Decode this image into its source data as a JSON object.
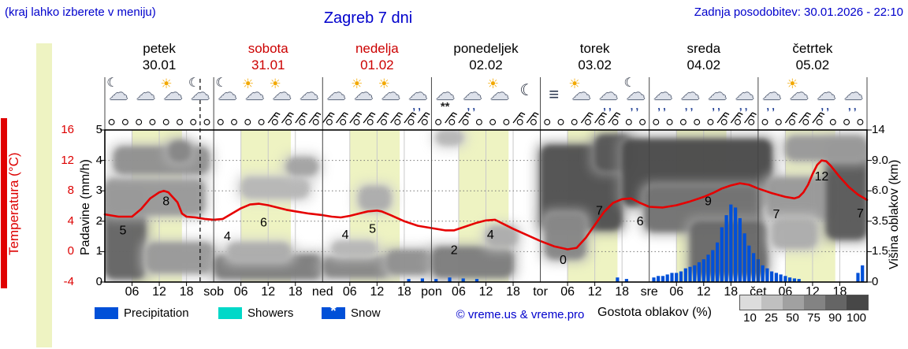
{
  "header": {
    "hint": "(kraj lahko izberete v meniju)",
    "title": "Zagreb 7 dni",
    "updated": "Zadnja posodobitev: 30.01.2026 - 22:10"
  },
  "axes": {
    "temp": {
      "label": "Temperatura (°C)",
      "ticks": [
        "16",
        "12",
        "8",
        "4",
        "0",
        "-4"
      ]
    },
    "precip": {
      "label": "Padavine (mm/h)",
      "ticks": [
        "5",
        "4",
        "3",
        "2",
        "1",
        "0"
      ]
    },
    "cloud": {
      "label": "Višina oblakov (km)",
      "ticks": [
        "14",
        "9.0",
        "6.0",
        "3.5",
        "1.5",
        "0"
      ]
    }
  },
  "days": [
    {
      "name": "petek",
      "date": "30.01",
      "color": "#000000"
    },
    {
      "name": "sobota",
      "date": "31.01",
      "color": "#cc0000"
    },
    {
      "name": "nedelja",
      "date": "01.02",
      "color": "#cc0000"
    },
    {
      "name": "ponedeljek",
      "date": "02.02",
      "color": "#000000"
    },
    {
      "name": "torek",
      "date": "03.02",
      "color": "#000000"
    },
    {
      "name": "sreda",
      "date": "04.02",
      "color": "#000000"
    },
    {
      "name": "četrtek",
      "date": "05.02",
      "color": "#000000"
    }
  ],
  "x_axis": {
    "hour_labels": [
      "06",
      "12",
      "18"
    ],
    "day_abbrevs": [
      "sob",
      "ned",
      "pon",
      "tor",
      "sre",
      "čet"
    ]
  },
  "icons": [
    "moon-cloud",
    "cloud",
    "sun-cloud",
    "moon-cloud",
    "moon-cloud",
    "sun-cloud",
    "sun-cloud",
    "cloud",
    "cloud",
    "sun-cloud",
    "sun-cloud",
    "cloud-rain",
    "cloud-snow",
    "cloud-rain",
    "sun-cloud",
    "moon",
    "fog",
    "sun-cloud",
    "cloud-rain",
    "moon-cloud-rain",
    "cloud-rain",
    "cloud-rain",
    "cloud-rain",
    "cloud-rain",
    "cloud-rain",
    "sun-cloud",
    "cloud-rain",
    "cloud-rain"
  ],
  "legend": {
    "precipitation": "Precipitation",
    "showers": "Showers",
    "snow": "Snow",
    "copyright": "© vreme.us & vreme.pro",
    "cloud_density": {
      "label": "Gostota oblakov (%)",
      "ticks": [
        "10",
        "25",
        "50",
        "75",
        "90",
        "100"
      ],
      "colors": [
        "#dcdcdc",
        "#c0c0c0",
        "#a1a1a1",
        "#838383",
        "#656565",
        "#474747"
      ]
    }
  },
  "colors": {
    "day_band": "#eef3c2",
    "precip_bar": "#0050d8",
    "showers": "#00d8c8",
    "temp_line": "#e60000",
    "accent_blue": "#0000cc",
    "weekend_red": "#cc0000"
  },
  "chart_data": {
    "type": "meteogram",
    "hours_total": 168,
    "now_hour": 21,
    "time_marker_every_h": 3,
    "daylight_hours": [
      6,
      17
    ],
    "temp_c": [
      [
        0,
        4.9
      ],
      [
        3,
        4.6
      ],
      [
        6,
        4.6
      ],
      [
        8,
        5.6
      ],
      [
        10,
        7.0
      ],
      [
        12,
        7.8
      ],
      [
        13,
        8.0
      ],
      [
        14,
        7.8
      ],
      [
        16,
        6.5
      ],
      [
        17,
        5.0
      ],
      [
        18,
        4.6
      ],
      [
        20,
        4.5
      ],
      [
        22,
        4.3
      ],
      [
        24,
        4.2
      ],
      [
        26,
        4.3
      ],
      [
        28,
        5.0
      ],
      [
        30,
        5.7
      ],
      [
        32,
        6.2
      ],
      [
        34,
        6.3
      ],
      [
        36,
        6.1
      ],
      [
        38,
        5.8
      ],
      [
        40,
        5.5
      ],
      [
        42,
        5.3
      ],
      [
        45,
        5.0
      ],
      [
        48,
        4.8
      ],
      [
        50,
        4.6
      ],
      [
        52,
        4.5
      ],
      [
        54,
        4.7
      ],
      [
        56,
        5.0
      ],
      [
        58,
        5.3
      ],
      [
        60,
        5.4
      ],
      [
        61,
        5.3
      ],
      [
        63,
        4.8
      ],
      [
        66,
        4.0
      ],
      [
        69,
        3.4
      ],
      [
        72,
        3.1
      ],
      [
        75,
        2.8
      ],
      [
        77,
        2.8
      ],
      [
        79,
        3.2
      ],
      [
        82,
        3.8
      ],
      [
        84,
        4.1
      ],
      [
        86,
        4.2
      ],
      [
        88,
        3.6
      ],
      [
        90,
        3.0
      ],
      [
        93,
        2.2
      ],
      [
        96,
        1.4
      ],
      [
        99,
        0.7
      ],
      [
        102,
        0.3
      ],
      [
        104,
        0.5
      ],
      [
        106,
        1.8
      ],
      [
        108,
        3.5
      ],
      [
        110,
        5.2
      ],
      [
        112,
        6.4
      ],
      [
        114,
        6.9
      ],
      [
        116,
        7.0
      ],
      [
        118,
        6.4
      ],
      [
        120,
        5.9
      ],
      [
        123,
        5.8
      ],
      [
        126,
        6.1
      ],
      [
        129,
        6.6
      ],
      [
        132,
        7.2
      ],
      [
        134,
        7.7
      ],
      [
        136,
        8.3
      ],
      [
        138,
        8.7
      ],
      [
        140,
        9.0
      ],
      [
        142,
        8.8
      ],
      [
        144,
        8.3
      ],
      [
        147,
        7.7
      ],
      [
        150,
        7.2
      ],
      [
        152,
        7.0
      ],
      [
        153,
        7.2
      ],
      [
        154,
        7.8
      ],
      [
        155,
        8.8
      ],
      [
        156,
        10.2
      ],
      [
        157,
        11.4
      ],
      [
        158,
        12.0
      ],
      [
        159,
        11.9
      ],
      [
        160,
        11.3
      ],
      [
        162,
        9.8
      ],
      [
        164,
        8.5
      ],
      [
        166,
        7.5
      ],
      [
        168,
        6.8
      ]
    ],
    "temp_labels": [
      [
        4,
        "5",
        2.8
      ],
      [
        13.5,
        "8",
        6.6
      ],
      [
        27,
        "4",
        2.0
      ],
      [
        35,
        "6",
        3.8
      ],
      [
        53,
        "4",
        2.2
      ],
      [
        59,
        "5",
        3.0
      ],
      [
        77,
        "2",
        0.2
      ],
      [
        85,
        "4",
        2.2
      ],
      [
        101,
        "0",
        -1.1
      ],
      [
        109,
        "7",
        5.4
      ],
      [
        118,
        "6",
        4.0
      ],
      [
        133,
        "9",
        6.6
      ],
      [
        148,
        "7",
        4.9
      ],
      [
        158,
        "12",
        9.9
      ],
      [
        166.5,
        "7",
        5.0
      ]
    ],
    "precip_mm": [
      [
        67,
        0.1
      ],
      [
        70,
        0.12
      ],
      [
        73,
        0.1
      ],
      [
        76,
        0.15
      ],
      [
        79,
        0.12
      ],
      [
        82,
        0.1
      ],
      [
        113,
        0.15
      ],
      [
        115,
        0.1
      ],
      [
        121,
        0.15
      ],
      [
        122,
        0.2
      ],
      [
        123,
        0.2
      ],
      [
        124,
        0.25
      ],
      [
        125,
        0.3
      ],
      [
        126,
        0.3
      ],
      [
        127,
        0.35
      ],
      [
        128,
        0.45
      ],
      [
        129,
        0.5
      ],
      [
        130,
        0.55
      ],
      [
        131,
        0.65
      ],
      [
        132,
        0.75
      ],
      [
        133,
        0.9
      ],
      [
        134,
        1.05
      ],
      [
        135,
        1.3
      ],
      [
        136,
        1.8
      ],
      [
        137,
        2.2
      ],
      [
        138,
        2.55
      ],
      [
        139,
        2.45
      ],
      [
        140,
        2.1
      ],
      [
        141,
        1.6
      ],
      [
        142,
        1.2
      ],
      [
        143,
        0.95
      ],
      [
        144,
        0.75
      ],
      [
        145,
        0.55
      ],
      [
        146,
        0.45
      ],
      [
        147,
        0.35
      ],
      [
        148,
        0.3
      ],
      [
        149,
        0.25
      ],
      [
        150,
        0.2
      ],
      [
        151,
        0.15
      ],
      [
        152,
        0.12
      ],
      [
        153,
        0.1
      ],
      [
        166,
        0.3
      ],
      [
        167,
        0.55
      ]
    ],
    "clouds": [
      [
        0,
        9,
        0.32,
        0.3,
        0.72
      ],
      [
        0,
        22,
        0.56,
        0.12,
        0.45
      ],
      [
        2,
        23,
        0.8,
        0.09,
        0.5
      ],
      [
        9,
        24,
        0.16,
        0.1,
        0.45
      ],
      [
        14,
        19,
        0.86,
        0.07,
        0.55
      ],
      [
        24,
        48,
        0.1,
        0.08,
        0.6
      ],
      [
        27,
        41,
        0.2,
        0.06,
        0.35
      ],
      [
        30,
        45,
        0.62,
        0.07,
        0.3
      ],
      [
        40,
        47,
        0.76,
        0.06,
        0.4
      ],
      [
        48,
        63,
        0.1,
        0.07,
        0.55
      ],
      [
        50,
        60,
        0.22,
        0.05,
        0.3
      ],
      [
        56,
        63,
        0.55,
        0.08,
        0.35
      ],
      [
        62,
        72,
        0.13,
        0.08,
        0.5
      ],
      [
        72,
        90,
        0.13,
        0.1,
        0.6
      ],
      [
        73,
        79,
        0.95,
        0.05,
        0.3
      ],
      [
        84,
        91,
        0.3,
        0.07,
        0.35
      ],
      [
        96,
        114,
        0.62,
        0.28,
        0.82
      ],
      [
        97,
        106,
        0.3,
        0.15,
        0.55
      ],
      [
        108,
        116,
        0.85,
        0.12,
        0.8
      ],
      [
        114,
        147,
        0.72,
        0.22,
        0.85
      ],
      [
        119,
        145,
        0.48,
        0.15,
        0.65
      ],
      [
        129,
        146,
        0.22,
        0.18,
        0.7
      ],
      [
        146,
        161,
        0.55,
        0.14,
        0.45
      ],
      [
        147,
        157,
        0.32,
        0.1,
        0.35
      ],
      [
        159,
        168,
        0.6,
        0.32,
        0.78
      ],
      [
        150,
        168,
        0.88,
        0.08,
        0.45
      ]
    ],
    "wind_barb_hours": [
      36,
      39,
      42,
      45,
      48,
      51,
      54,
      57,
      60,
      63,
      66,
      69,
      75,
      78,
      90,
      93,
      105,
      108,
      111,
      135,
      138,
      141,
      150,
      153,
      156
    ]
  }
}
